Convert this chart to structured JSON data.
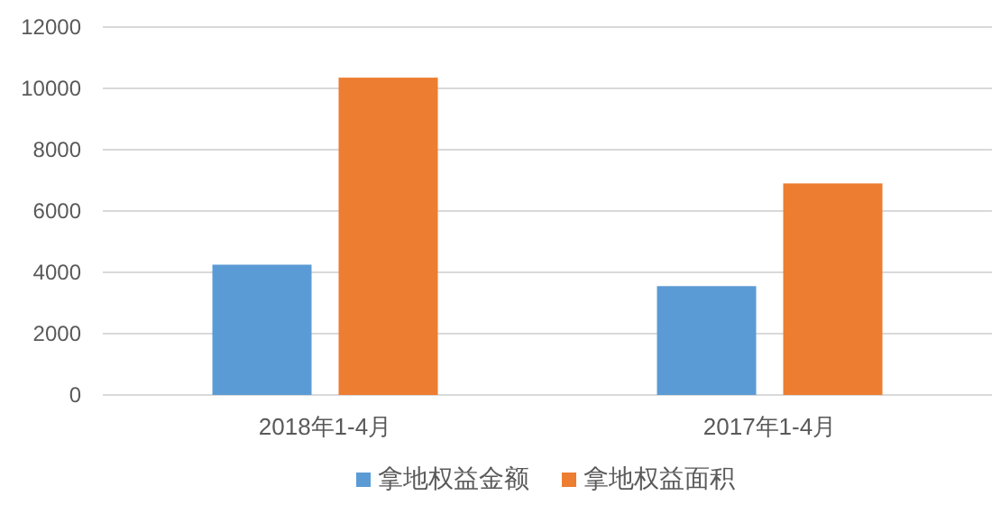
{
  "chart_data": {
    "type": "bar",
    "categories": [
      "2018年1-4月",
      "2017年1-4月"
    ],
    "series": [
      {
        "name": "拿地权益金额",
        "color": "#5b9bd5",
        "values": [
          4250,
          3550
        ]
      },
      {
        "name": "拿地权益面积",
        "color": "#ed7d31",
        "values": [
          10350,
          6900
        ]
      }
    ],
    "ylim": [
      0,
      12000
    ],
    "yticks": [
      0,
      2000,
      4000,
      6000,
      8000,
      10000,
      12000
    ],
    "grid": "y",
    "legend": "bottom"
  }
}
